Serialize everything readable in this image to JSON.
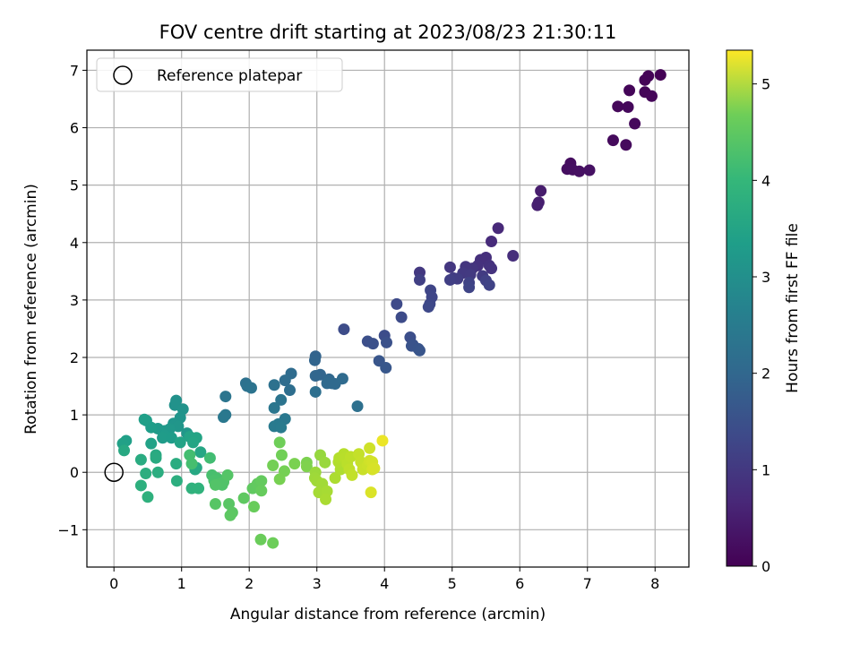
{
  "chart_data": {
    "type": "scatter",
    "title": "FOV centre drift starting at 2023/08/23 21:30:11",
    "xlabel": "Angular distance from reference (arcmin)",
    "ylabel": "Rotation from reference (arcmin)",
    "xlim": [
      -0.4,
      8.5
    ],
    "ylim": [
      -1.65,
      7.35
    ],
    "xticks": [
      0,
      1,
      2,
      3,
      4,
      5,
      6,
      7,
      8
    ],
    "yticks": [
      -1,
      0,
      1,
      2,
      3,
      4,
      5,
      6,
      7
    ],
    "grid": true,
    "legend": {
      "position": "top-left",
      "entries": [
        "Reference platepar"
      ]
    },
    "reference_point": {
      "x": 0,
      "y": 0
    },
    "colorbar": {
      "label": "Hours from first FF file",
      "colormap": "viridis",
      "range": [
        0,
        5.35
      ],
      "ticks": [
        0,
        1,
        2,
        3,
        4,
        5
      ]
    },
    "points": [
      [
        8.08,
        6.92,
        0.02
      ],
      [
        7.9,
        6.9,
        0.04
      ],
      [
        7.85,
        6.83,
        0.05
      ],
      [
        7.62,
        6.65,
        0.06
      ],
      [
        7.85,
        6.62,
        0.07
      ],
      [
        7.95,
        6.55,
        0.08
      ],
      [
        7.45,
        6.37,
        0.1
      ],
      [
        7.6,
        6.36,
        0.11
      ],
      [
        7.7,
        6.07,
        0.12
      ],
      [
        7.38,
        5.78,
        0.14
      ],
      [
        7.57,
        5.7,
        0.15
      ],
      [
        6.75,
        5.38,
        0.18
      ],
      [
        6.7,
        5.28,
        0.2
      ],
      [
        6.78,
        5.27,
        0.22
      ],
      [
        6.88,
        5.24,
        0.23
      ],
      [
        7.03,
        5.26,
        0.24
      ],
      [
        6.31,
        4.9,
        0.42
      ],
      [
        6.28,
        4.7,
        0.45
      ],
      [
        6.26,
        4.65,
        0.47
      ],
      [
        5.68,
        4.25,
        0.62
      ],
      [
        5.58,
        4.02,
        0.65
      ],
      [
        5.9,
        3.77,
        0.7
      ],
      [
        5.5,
        3.74,
        0.72
      ],
      [
        5.42,
        3.7,
        0.74
      ],
      [
        5.38,
        3.6,
        0.76
      ],
      [
        5.55,
        3.6,
        0.78
      ],
      [
        5.58,
        3.55,
        0.8
      ],
      [
        5.3,
        3.55,
        0.82
      ],
      [
        5.2,
        3.58,
        0.84
      ],
      [
        4.97,
        3.57,
        0.86
      ],
      [
        4.52,
        3.48,
        0.88
      ],
      [
        5.16,
        3.47,
        0.9
      ],
      [
        5.27,
        3.44,
        0.92
      ],
      [
        5.45,
        3.42,
        0.94
      ],
      [
        5.02,
        3.38,
        0.96
      ],
      [
        5.08,
        3.37,
        0.98
      ],
      [
        4.97,
        3.35,
        1.0
      ],
      [
        4.52,
        3.35,
        1.02
      ],
      [
        5.5,
        3.34,
        1.04
      ],
      [
        5.25,
        3.3,
        1.06
      ],
      [
        5.55,
        3.26,
        1.08
      ],
      [
        5.25,
        3.22,
        1.1
      ],
      [
        4.68,
        3.17,
        1.12
      ],
      [
        4.7,
        3.05,
        1.14
      ],
      [
        4.67,
        2.93,
        1.16
      ],
      [
        4.65,
        2.88,
        1.18
      ],
      [
        4.18,
        2.93,
        1.2
      ],
      [
        4.25,
        2.7,
        1.22
      ],
      [
        3.4,
        2.49,
        1.24
      ],
      [
        4.0,
        2.38,
        1.26
      ],
      [
        4.38,
        2.35,
        1.28
      ],
      [
        3.75,
        2.28,
        1.3
      ],
      [
        3.83,
        2.24,
        1.32
      ],
      [
        4.03,
        2.26,
        1.34
      ],
      [
        4.42,
        2.22,
        1.36
      ],
      [
        4.4,
        2.2,
        1.38
      ],
      [
        4.5,
        2.15,
        1.4
      ],
      [
        4.52,
        2.12,
        1.42
      ],
      [
        3.92,
        1.94,
        1.44
      ],
      [
        4.02,
        1.82,
        1.46
      ],
      [
        2.98,
        2.02,
        1.7
      ],
      [
        2.97,
        1.95,
        1.72
      ],
      [
        3.05,
        1.7,
        1.74
      ],
      [
        2.98,
        1.68,
        1.76
      ],
      [
        3.18,
        1.62,
        1.78
      ],
      [
        3.22,
        1.55,
        1.8
      ],
      [
        3.15,
        1.55,
        1.82
      ],
      [
        3.27,
        1.54,
        1.84
      ],
      [
        3.38,
        1.63,
        1.86
      ],
      [
        2.62,
        1.72,
        1.88
      ],
      [
        2.53,
        1.6,
        1.9
      ],
      [
        2.6,
        1.43,
        1.92
      ],
      [
        2.98,
        1.4,
        1.94
      ],
      [
        3.6,
        1.15,
        1.96
      ],
      [
        2.37,
        1.52,
        1.98
      ],
      [
        1.95,
        1.55,
        2.0
      ],
      [
        1.97,
        1.5,
        2.02
      ],
      [
        2.03,
        1.47,
        2.04
      ],
      [
        2.47,
        1.26,
        2.06
      ],
      [
        1.65,
        1.32,
        2.08
      ],
      [
        2.37,
        1.12,
        2.1
      ],
      [
        1.65,
        1.0,
        2.12
      ],
      [
        1.62,
        0.96,
        2.14
      ],
      [
        2.53,
        0.93,
        2.16
      ],
      [
        2.43,
        0.84,
        2.18
      ],
      [
        2.37,
        0.8,
        2.2
      ],
      [
        2.47,
        0.78,
        2.22
      ],
      [
        0.92,
        1.25,
        2.7
      ],
      [
        0.9,
        1.17,
        2.72
      ],
      [
        1.02,
        1.1,
        2.74
      ],
      [
        0.98,
        0.95,
        2.76
      ],
      [
        0.88,
        0.85,
        2.78
      ],
      [
        0.95,
        0.8,
        2.8
      ],
      [
        1.08,
        0.68,
        2.82
      ],
      [
        0.82,
        0.75,
        2.84
      ],
      [
        0.75,
        0.72,
        2.86
      ],
      [
        0.65,
        0.76,
        2.88
      ],
      [
        0.75,
        0.64,
        2.9
      ],
      [
        0.72,
        0.6,
        2.92
      ],
      [
        0.85,
        0.6,
        2.94
      ],
      [
        0.55,
        0.78,
        2.96
      ],
      [
        0.48,
        0.9,
        2.98
      ],
      [
        0.45,
        0.92,
        3.0
      ],
      [
        0.18,
        0.55,
        3.02
      ],
      [
        0.13,
        0.5,
        3.04
      ],
      [
        0.55,
        0.5,
        3.06
      ],
      [
        0.98,
        0.52,
        3.08
      ],
      [
        1.12,
        0.62,
        3.1
      ],
      [
        1.22,
        0.6,
        3.12
      ],
      [
        1.17,
        0.52,
        3.14
      ],
      [
        1.28,
        0.35,
        3.16
      ],
      [
        1.22,
        0.08,
        3.18
      ],
      [
        1.2,
        0.05,
        3.2
      ],
      [
        0.15,
        0.38,
        3.22
      ],
      [
        0.62,
        0.3,
        3.24
      ],
      [
        0.62,
        0.25,
        3.26
      ],
      [
        0.4,
        0.22,
        3.28
      ],
      [
        0.92,
        0.15,
        3.3
      ],
      [
        0.65,
        0.0,
        3.32
      ],
      [
        0.47,
        -0.02,
        3.34
      ],
      [
        0.93,
        -0.15,
        3.36
      ],
      [
        0.4,
        -0.23,
        3.38
      ],
      [
        0.5,
        -0.43,
        3.4
      ],
      [
        1.15,
        -0.28,
        3.42
      ],
      [
        1.25,
        -0.28,
        3.44
      ],
      [
        1.42,
        0.25,
        3.7
      ],
      [
        1.12,
        0.3,
        3.72
      ],
      [
        1.15,
        0.15,
        3.74
      ],
      [
        1.45,
        -0.05,
        3.76
      ],
      [
        1.52,
        -0.1,
        3.78
      ],
      [
        1.48,
        -0.14,
        3.8
      ],
      [
        1.55,
        -0.2,
        3.82
      ],
      [
        1.6,
        -0.22,
        3.84
      ],
      [
        1.62,
        -0.17,
        3.86
      ],
      [
        1.5,
        -0.22,
        3.88
      ],
      [
        1.68,
        -0.05,
        3.9
      ],
      [
        1.5,
        -0.55,
        3.92
      ],
      [
        1.7,
        -0.55,
        3.94
      ],
      [
        1.75,
        -0.7,
        3.96
      ],
      [
        1.72,
        -0.75,
        3.98
      ],
      [
        1.92,
        -0.45,
        4.0
      ],
      [
        2.05,
        -0.28,
        4.02
      ],
      [
        2.12,
        -0.2,
        4.04
      ],
      [
        2.18,
        -0.15,
        4.06
      ],
      [
        2.18,
        -0.32,
        4.08
      ],
      [
        2.07,
        -0.6,
        4.1
      ],
      [
        2.17,
        -1.17,
        4.12
      ],
      [
        2.35,
        -1.23,
        4.14
      ],
      [
        2.45,
        0.52,
        4.16
      ],
      [
        2.48,
        0.3,
        4.18
      ],
      [
        2.35,
        0.12,
        4.2
      ],
      [
        2.52,
        0.02,
        4.22
      ],
      [
        2.45,
        -0.12,
        4.24
      ],
      [
        2.67,
        0.15,
        4.26
      ],
      [
        2.85,
        0.17,
        4.28
      ],
      [
        2.85,
        0.1,
        4.3
      ],
      [
        3.05,
        0.3,
        4.5
      ],
      [
        3.12,
        0.17,
        4.52
      ],
      [
        2.98,
        0.0,
        4.54
      ],
      [
        2.97,
        -0.1,
        4.56
      ],
      [
        3.0,
        -0.15,
        4.58
      ],
      [
        3.08,
        -0.2,
        4.6
      ],
      [
        3.03,
        -0.35,
        4.62
      ],
      [
        3.15,
        -0.33,
        4.64
      ],
      [
        3.13,
        -0.47,
        4.66
      ],
      [
        3.27,
        -0.1,
        4.68
      ],
      [
        3.35,
        0.05,
        4.7
      ],
      [
        3.32,
        0.18,
        4.72
      ],
      [
        3.33,
        0.25,
        4.74
      ],
      [
        3.4,
        0.32,
        4.76
      ],
      [
        3.42,
        0.25,
        4.78
      ],
      [
        3.45,
        0.15,
        4.8
      ],
      [
        3.5,
        0.27,
        4.82
      ],
      [
        3.48,
        0.05,
        4.84
      ],
      [
        3.52,
        -0.05,
        4.86
      ],
      [
        3.62,
        0.32,
        4.88
      ],
      [
        3.65,
        0.18,
        4.9
      ],
      [
        3.68,
        0.05,
        4.92
      ],
      [
        3.75,
        0.12,
        4.94
      ],
      [
        3.78,
        0.42,
        4.96
      ],
      [
        3.78,
        0.2,
        4.98
      ],
      [
        3.82,
        0.18,
        5.0
      ],
      [
        3.82,
        0.05,
        5.02
      ],
      [
        3.85,
        0.07,
        5.04
      ],
      [
        3.8,
        -0.35,
        5.06
      ],
      [
        3.97,
        0.55,
        5.2
      ]
    ]
  }
}
